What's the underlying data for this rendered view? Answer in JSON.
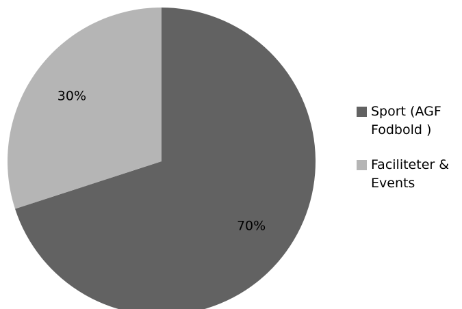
{
  "chart_data": {
    "type": "pie",
    "categories": [
      "Sport (AGF Fodbold )",
      "Faciliteter & Events"
    ],
    "values": [
      70,
      30
    ],
    "labels": [
      "70%",
      "30%"
    ],
    "colors": [
      "#626262",
      "#b5b5b5"
    ],
    "legend_position": "right"
  },
  "legend": {
    "items": [
      {
        "label": "Sport (AGF Fodbold )",
        "color": "#626262"
      },
      {
        "label": "Faciliteter & Events",
        "color": "#b5b5b5"
      }
    ]
  }
}
